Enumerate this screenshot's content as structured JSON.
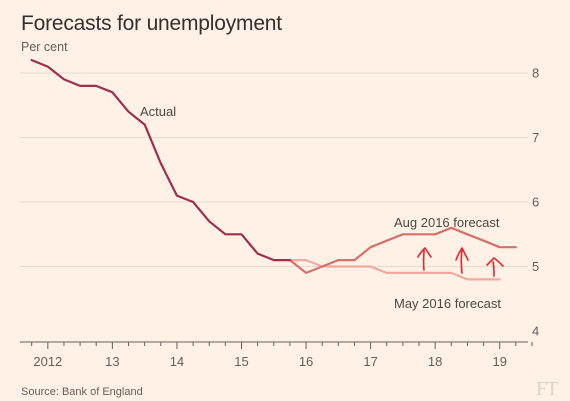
{
  "chart_data": {
    "type": "line",
    "title": "Forecasts for unemployment",
    "subtitle": "Per cent",
    "source": "Source: Bank of England",
    "logo": "FT",
    "xlim": [
      2011.6,
      2019.45
    ],
    "ylim": [
      4,
      8
    ],
    "y_ticks": [
      4,
      5,
      6,
      7,
      8
    ],
    "x_ticks": [
      {
        "value": 2012,
        "label": "2012"
      },
      {
        "value": 2013,
        "label": "13"
      },
      {
        "value": 2014,
        "label": "14"
      },
      {
        "value": 2015,
        "label": "15"
      },
      {
        "value": 2016,
        "label": "16"
      },
      {
        "value": 2017,
        "label": "17"
      },
      {
        "value": 2018,
        "label": "18"
      },
      {
        "value": 2019,
        "label": "19"
      }
    ],
    "grid": true,
    "y_axis_side": "right",
    "series": [
      {
        "name": "Actual",
        "color": "#9e2f50",
        "x": [
          2011.75,
          2012.0,
          2012.25,
          2012.5,
          2012.75,
          2013.0,
          2013.25,
          2013.5,
          2013.75,
          2014.0,
          2014.25,
          2014.5,
          2014.75,
          2015.0,
          2015.25,
          2015.5,
          2015.75
        ],
        "y": [
          8.2,
          8.1,
          7.9,
          7.8,
          7.8,
          7.7,
          7.4,
          7.2,
          6.6,
          6.1,
          6.0,
          5.7,
          5.5,
          5.5,
          5.2,
          5.1,
          5.1
        ]
      },
      {
        "name": "Aug 2016 forecast",
        "color": "#d7706c",
        "x": [
          2015.75,
          2016.0,
          2016.25,
          2016.5,
          2016.75,
          2017.0,
          2017.25,
          2017.5,
          2017.75,
          2018.0,
          2018.25,
          2018.5,
          2018.75,
          2019.0,
          2019.25
        ],
        "y": [
          5.1,
          4.9,
          5.0,
          5.1,
          5.1,
          5.3,
          5.4,
          5.5,
          5.5,
          5.5,
          5.6,
          5.5,
          5.4,
          5.3,
          5.3
        ]
      },
      {
        "name": "May 2016 forecast",
        "color": "#f2a9a0",
        "x": [
          2015.75,
          2016.0,
          2016.25,
          2016.5,
          2016.75,
          2017.0,
          2017.25,
          2017.5,
          2017.75,
          2018.0,
          2018.25,
          2018.5,
          2018.75,
          2019.0
        ],
        "y": [
          5.1,
          5.1,
          5.0,
          5.0,
          5.0,
          5.0,
          4.9,
          4.9,
          4.9,
          4.9,
          4.9,
          4.8,
          4.8,
          4.8
        ]
      }
    ],
    "arrow_color": "#e8262e"
  }
}
